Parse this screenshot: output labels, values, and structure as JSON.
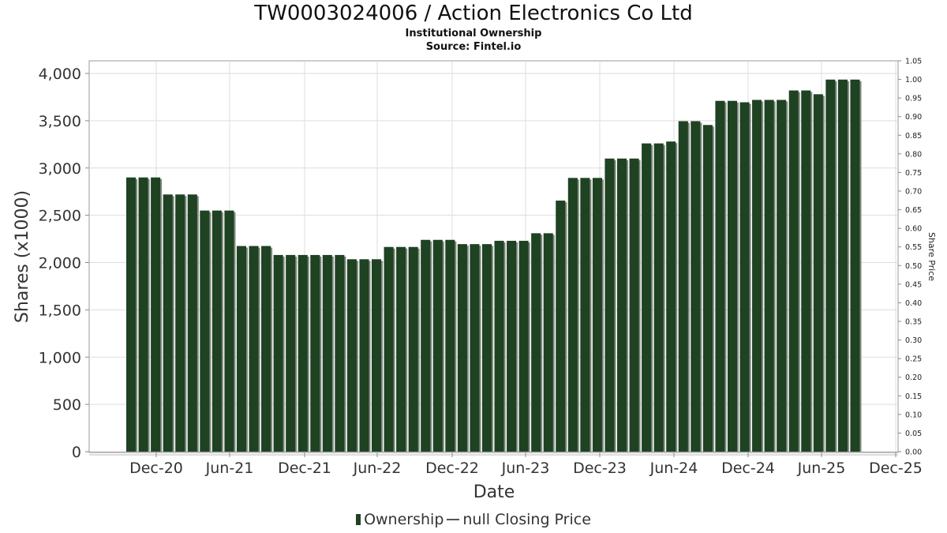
{
  "chart_data": {
    "type": "bar",
    "title": "TW0003024006 / Action Electronics Co Ltd",
    "subtitle": "Institutional Ownership",
    "source": "Source: Fintel.io",
    "xlabel": "Date",
    "ylabel": "Shares (x1000)",
    "y2label": "Share Price",
    "ylim": [
      0,
      4000
    ],
    "y2lim": [
      0,
      1.05
    ],
    "grid": true,
    "legend_position": "bottom",
    "colors": {
      "bar": "#1e4222",
      "bar_shadow": "#7f8a7f",
      "grid": "#dddddd"
    },
    "x_ticks": [
      "Dec-20",
      "Jun-21",
      "Dec-21",
      "Jun-22",
      "Dec-22",
      "Jun-23",
      "Dec-23",
      "Jun-24",
      "Dec-24",
      "Jun-25",
      "Dec-25"
    ],
    "y_ticks": [
      "0",
      "500",
      "1,000",
      "1,500",
      "2,000",
      "2,500",
      "3,000",
      "3,500",
      "4,000"
    ],
    "y2_ticks": [
      "0.00",
      "0.05",
      "0.10",
      "0.15",
      "0.20",
      "0.25",
      "0.30",
      "0.35",
      "0.40",
      "0.45",
      "0.50",
      "0.55",
      "0.60",
      "0.65",
      "0.70",
      "0.75",
      "0.80",
      "0.85",
      "0.90",
      "0.95",
      "1.00",
      "1.05"
    ],
    "series": [
      {
        "name": "Ownership",
        "values": [
          2900,
          2900,
          2900,
          2720,
          2720,
          2720,
          2550,
          2550,
          2550,
          2175,
          2175,
          2175,
          2080,
          2080,
          2080,
          2080,
          2080,
          2080,
          2035,
          2035,
          2035,
          2165,
          2165,
          2165,
          2240,
          2240,
          2240,
          2195,
          2195,
          2195,
          2230,
          2230,
          2230,
          2310,
          2310,
          2655,
          2895,
          2895,
          2895,
          3100,
          3100,
          3100,
          3260,
          3260,
          3280,
          3495,
          3495,
          3455,
          3710,
          3710,
          3695,
          3720,
          3720,
          3720,
          3820,
          3820,
          3780,
          3935,
          3935,
          3935
        ]
      }
    ],
    "legend": [
      {
        "label": "Ownership",
        "marker": "bar"
      },
      {
        "label": "null Closing Price",
        "marker": "line"
      }
    ]
  }
}
